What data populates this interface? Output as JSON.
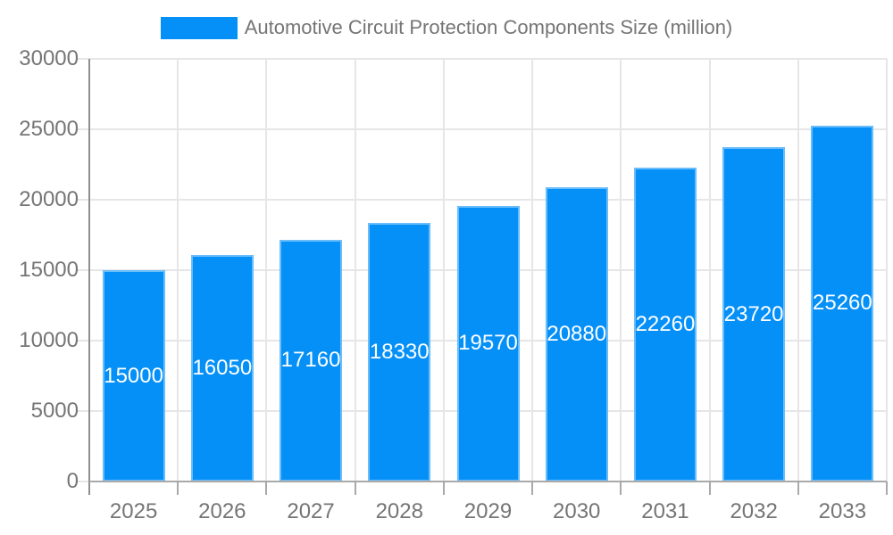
{
  "page": {
    "background": "#ffffff"
  },
  "style": {
    "bar_color": "#0590f8",
    "bar_edge_color": "#69bdfb",
    "text_color": "#757575",
    "gridline_color": "#e6e6e6",
    "y_axis_color": "#8f8f8f",
    "x_axis_color": "#a9a9a9",
    "value_label_color": "#ffffff"
  },
  "chart_data": {
    "type": "bar",
    "title": "Automotive Circuit Protection Components Size (million)",
    "legend_position": "top",
    "series_name": "Automotive Circuit Protection Components Size (million)",
    "categories": [
      "2025",
      "2026",
      "2027",
      "2028",
      "2029",
      "2030",
      "2031",
      "2032",
      "2033"
    ],
    "values": [
      15000,
      16050,
      17160,
      18330,
      19570,
      20880,
      22260,
      23720,
      25260
    ],
    "xlabel": "",
    "ylabel": "",
    "ylim": [
      0,
      30000
    ],
    "ytick_step": 5000,
    "ytick_labels": [
      "0",
      "5000",
      "10000",
      "15000",
      "20000",
      "25000",
      "30000"
    ],
    "grid": true,
    "bar_value_labels_visible": true
  }
}
